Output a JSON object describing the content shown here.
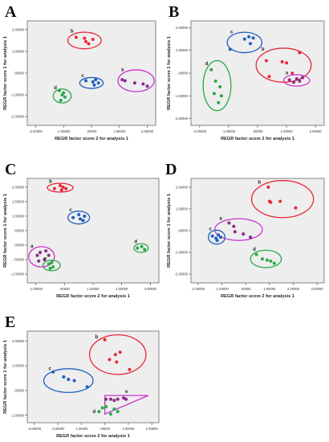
{
  "chart_data": [
    {
      "type": "scatter",
      "panel_label": "A",
      "xlabel": "REGR factor score   2 for analysis 1",
      "ylabel": "REGR factor score   1 for analysis 1",
      "xlim": [
        -2.3,
        2.3
      ],
      "ylim": [
        -2.4,
        2.4
      ],
      "xticks": [
        -2,
        -1,
        0,
        1,
        2
      ],
      "xtick_labels": [
        "-2.00000",
        "-1.00000",
        ".00000",
        "1.00000",
        "2.00000"
      ],
      "yticks": [
        -2,
        -1,
        0,
        1,
        2
      ],
      "ytick_labels": [
        "-2.00000",
        "-1.00000",
        ".00000",
        "1.00000",
        "2.00000"
      ],
      "series": [
        {
          "name": "b",
          "color": "#e8283a",
          "x": [
            -0.55,
            -0.25,
            -0.2,
            -0.1,
            0.05
          ],
          "y": [
            1.65,
            1.6,
            1.45,
            1.35,
            1.55
          ],
          "ellipse": {
            "cx": -0.25,
            "cy": 1.5,
            "rx": 0.6,
            "ry": 0.38
          },
          "ellipse_color": "#e8283a"
        },
        {
          "name": "c",
          "color": "#1f5fbf",
          "x": [
            -0.2,
            0.05,
            0.1,
            0.25,
            0.15
          ],
          "y": [
            -0.35,
            -0.4,
            -0.55,
            -0.45,
            -0.3
          ],
          "ellipse": {
            "cx": 0.0,
            "cy": -0.45,
            "rx": 0.42,
            "ry": 0.25
          },
          "ellipse_color": "#1f5fbf"
        },
        {
          "name": "d",
          "color": "#2aa84a",
          "x": [
            -1.15,
            -1.05,
            -0.95,
            -1.0,
            -1.1
          ],
          "y": [
            -0.8,
            -1.0,
            -1.1,
            -0.9,
            -1.25
          ],
          "ellipse": {
            "cx": -1.05,
            "cy": -1.05,
            "rx": 0.32,
            "ry": 0.32
          },
          "ellipse_color": "#2aa84a"
        },
        {
          "name": "a",
          "color": "#8a2a8a",
          "x": [
            1.1,
            1.2,
            1.55,
            1.85,
            2.0
          ],
          "y": [
            -0.3,
            -0.35,
            -0.45,
            -0.5,
            -0.6
          ],
          "ellipse": {
            "cx": 1.6,
            "cy": -0.35,
            "rx": 0.65,
            "ry": 0.5
          },
          "ellipse_color": "#cc33cc"
        }
      ]
    },
    {
      "type": "scatter",
      "panel_label": "B",
      "xlabel": "REGR factor score   2 for analysis 1",
      "ylabel": "REGR factor score   1 for analysis 1",
      "xlim": [
        -2.3,
        2.3
      ],
      "ylim": [
        -2.3,
        2.3
      ],
      "xticks": [
        -2,
        -1,
        0,
        1,
        2
      ],
      "xtick_labels": [
        "-2.00000",
        "-1.00000",
        ".00000",
        "1.00000",
        "2.00000"
      ],
      "yticks": [
        -2,
        -1,
        0,
        1,
        2
      ],
      "ytick_labels": [
        "-2.00000",
        "-1.00000",
        ".00000",
        "1.00000",
        "2.00000"
      ],
      "series": [
        {
          "name": "c",
          "color": "#1f5fbf",
          "x": [
            -0.95,
            -0.45,
            -0.3,
            -0.15,
            -0.25
          ],
          "y": [
            1.05,
            1.5,
            1.6,
            1.55,
            1.3
          ],
          "ellipse": {
            "cx": -0.45,
            "cy": 1.35,
            "rx": 0.6,
            "ry": 0.45
          },
          "ellipse_color": "#1f5fbf"
        },
        {
          "name": "b",
          "color": "#e8283a",
          "x": [
            0.3,
            0.4,
            0.85,
            1.0,
            1.2,
            1.45
          ],
          "y": [
            0.55,
            -0.15,
            0.5,
            0.45,
            0.0,
            0.9
          ],
          "ellipse": {
            "cx": 0.9,
            "cy": 0.35,
            "rx": 0.95,
            "ry": 0.75
          },
          "ellipse_color": "#e8283a"
        },
        {
          "name": "d",
          "color": "#2aa84a",
          "x": [
            -1.6,
            -1.45,
            -1.3,
            -1.25,
            -1.35,
            -1.5
          ],
          "y": [
            0.15,
            -0.35,
            -0.6,
            -1.0,
            -1.3,
            -0.9
          ],
          "ellipse": {
            "cx": -1.4,
            "cy": -0.55,
            "rx": 0.48,
            "ry": 1.1
          },
          "ellipse_color": "#2aa84a"
        },
        {
          "name": "a",
          "color": "#8a2a8a",
          "x": [
            1.1,
            1.25,
            1.35,
            1.45,
            1.55
          ],
          "y": [
            -0.3,
            -0.4,
            -0.25,
            -0.35,
            -0.2
          ],
          "ellipse": {
            "cx": 1.35,
            "cy": -0.32,
            "rx": 0.45,
            "ry": 0.25
          },
          "ellipse_color": "#cc33cc"
        }
      ]
    },
    {
      "type": "scatter",
      "panel_label": "C",
      "xlabel": "REGR factor score   2 for analysis 1",
      "ylabel": "REGR factor score   1 for analysis 1",
      "xlim": [
        -1.3,
        3.3
      ],
      "ylim": [
        -1.3,
        2.3
      ],
      "xticks": [
        -1,
        0,
        1,
        2,
        3
      ],
      "xtick_labels": [
        "-1.00000",
        ".00000",
        "1.00000",
        "2.00000",
        "3.00000"
      ],
      "yticks": [
        -1,
        -0.5,
        0,
        0.5,
        1,
        1.5,
        2
      ],
      "ytick_labels": [
        "-1.00000",
        "-.50000",
        ".00000",
        ".50000",
        "1.00000",
        "1.50000",
        "2.00000"
      ],
      "series": [
        {
          "name": "b",
          "color": "#e8283a",
          "x": [
            -0.35,
            -0.15,
            -0.05,
            0.05,
            -0.1
          ],
          "y": [
            1.95,
            2.05,
            2.0,
            1.95,
            1.9
          ],
          "ellipse": {
            "cx": -0.15,
            "cy": 1.98,
            "rx": 0.45,
            "ry": 0.15
          },
          "ellipse_color": "#e8283a"
        },
        {
          "name": "c",
          "color": "#1f5fbf",
          "x": [
            0.3,
            0.5,
            0.55,
            0.65,
            0.7
          ],
          "y": [
            0.95,
            1.05,
            0.9,
            0.85,
            1.0
          ],
          "ellipse": {
            "cx": 0.5,
            "cy": 0.95,
            "rx": 0.38,
            "ry": 0.22
          },
          "ellipse_color": "#1f5fbf"
        },
        {
          "name": "a",
          "color": "#8a2a8a",
          "x": [
            -0.95,
            -0.85,
            -0.65,
            -0.55,
            -0.7,
            -0.9
          ],
          "y": [
            -0.35,
            -0.25,
            -0.2,
            -0.35,
            -0.5,
            -0.55
          ],
          "ellipse": {
            "cx": -0.8,
            "cy": -0.4,
            "rx": 0.45,
            "ry": 0.35
          },
          "ellipse_color": "#cc33cc"
        },
        {
          "name": "e",
          "color": "#2aa84a",
          "x": [
            -0.55,
            -0.45,
            -0.4,
            -0.5
          ],
          "y": [
            -0.65,
            -0.6,
            -0.75,
            -0.8
          ],
          "ellipse": {
            "cx": -0.45,
            "cy": -0.7,
            "rx": 0.3,
            "ry": 0.18
          },
          "ellipse_color": "#2aa84a"
        },
        {
          "name": "d",
          "color": "#2aa84a",
          "x": [
            2.55,
            2.7,
            2.8
          ],
          "y": [
            -0.1,
            -0.05,
            -0.15
          ],
          "ellipse": {
            "cx": 2.68,
            "cy": -0.1,
            "rx": 0.25,
            "ry": 0.15
          },
          "ellipse_color": "#2aa84a"
        }
      ]
    },
    {
      "type": "scatter",
      "panel_label": "D",
      "xlabel": "REGR factor score   2 for analysis 1",
      "ylabel": "REGR factor score   1 for analysis 1",
      "xlim": [
        -2.3,
        3.3
      ],
      "ylim": [
        -2.4,
        2.4
      ],
      "xticks": [
        -2,
        -1,
        0,
        1,
        2,
        3
      ],
      "xtick_labels": [
        "-2.00000",
        "-1.00000",
        ".00000",
        "1.00000",
        "2.00000",
        "3.00000"
      ],
      "yticks": [
        -2,
        -1,
        0,
        1,
        2
      ],
      "ytick_labels": [
        "-2.00000",
        "-1.00000",
        ".00000",
        "1.00000",
        "2.00000"
      ],
      "series": [
        {
          "name": "b",
          "color": "#e8283a",
          "x": [
            0.95,
            1.0,
            1.05,
            1.45,
            2.1
          ],
          "y": [
            2.0,
            1.35,
            1.3,
            1.35,
            1.05
          ],
          "ellipse": {
            "cx": 1.55,
            "cy": 1.45,
            "rx": 1.3,
            "ry": 0.85
          },
          "ellipse_color": "#e8283a"
        },
        {
          "name": "a",
          "color": "#8a2a8a",
          "x": [
            -0.7,
            -0.5,
            -0.45,
            -0.1,
            0.2
          ],
          "y": [
            0.35,
            0.2,
            -0.05,
            -0.15,
            -0.3
          ],
          "ellipse": {
            "cx": -0.3,
            "cy": 0.05,
            "rx": 1.0,
            "ry": 0.5
          },
          "ellipse_color": "#cc33cc"
        },
        {
          "name": "c",
          "color": "#1f5fbf",
          "x": [
            -1.4,
            -1.25,
            -1.15,
            -1.05,
            -1.2
          ],
          "y": [
            -0.25,
            -0.35,
            -0.2,
            -0.3,
            -0.45
          ],
          "ellipse": {
            "cx": -1.22,
            "cy": -0.3,
            "rx": 0.35,
            "ry": 0.32
          },
          "ellipse_color": "#1f5fbf"
        },
        {
          "name": "d",
          "color": "#2aa84a",
          "x": [
            0.45,
            0.7,
            0.9,
            1.05,
            1.2
          ],
          "y": [
            -1.1,
            -1.3,
            -1.35,
            -1.4,
            -1.5
          ],
          "ellipse": {
            "cx": 0.85,
            "cy": -1.3,
            "rx": 0.65,
            "ry": 0.4
          },
          "ellipse_color": "#2aa84a"
        }
      ]
    },
    {
      "type": "scatter",
      "panel_label": "E",
      "xlabel": "REGR factor score   2 for analysis 1",
      "ylabel": "REGR factor score   1 for analysis 1",
      "xlim": [
        -3.3,
        2.3
      ],
      "ylim": [
        -1.3,
        2.4
      ],
      "xticks": [
        -3,
        -2,
        -1,
        0,
        1,
        2
      ],
      "xtick_labels": [
        "-3.00000",
        "-2.00000",
        "-1.00000",
        ".00000",
        "1.00000",
        "2.00000"
      ],
      "yticks": [
        -1,
        0,
        1,
        2
      ],
      "ytick_labels": [
        "-1.00000",
        ".00000",
        "1.00000",
        "2.00000"
      ],
      "series": [
        {
          "name": "b",
          "color": "#e8283a",
          "x": [
            0.0,
            0.2,
            0.45,
            0.5,
            0.65,
            1.05
          ],
          "y": [
            2.05,
            1.25,
            1.45,
            1.15,
            1.55,
            0.85
          ],
          "ellipse": {
            "cx": 0.55,
            "cy": 1.45,
            "rx": 1.2,
            "ry": 0.8
          },
          "ellipse_color": "#e8283a"
        },
        {
          "name": "c",
          "color": "#1f5fbf",
          "x": [
            -2.2,
            -1.75,
            -1.55,
            -1.3,
            -0.75
          ],
          "y": [
            0.75,
            0.55,
            0.45,
            0.4,
            0.15
          ],
          "ellipse": {
            "cx": -1.55,
            "cy": 0.4,
            "rx": 1.05,
            "ry": 0.48
          },
          "ellipse_color": "#1f5fbf"
        },
        {
          "name": "e",
          "color": "#8a2a8a",
          "x": [
            0.05,
            0.25,
            0.4,
            0.55,
            0.8,
            0.9
          ],
          "y": [
            -0.35,
            -0.35,
            -0.4,
            -0.35,
            -0.3,
            -0.35
          ],
          "triangle": [
            [
              0.0,
              -0.2
            ],
            [
              1.85,
              -0.2
            ],
            [
              0.0,
              -0.95
            ]
          ],
          "triangle_color": "#cc33cc"
        },
        {
          "name": "d",
          "color": "#2aa84a",
          "x": [
            -0.25,
            -0.1,
            0.05,
            0.25,
            0.4,
            0.55
          ],
          "y": [
            -0.85,
            -0.7,
            -0.65,
            -0.95,
            -0.75,
            -0.85
          ]
        }
      ]
    }
  ]
}
